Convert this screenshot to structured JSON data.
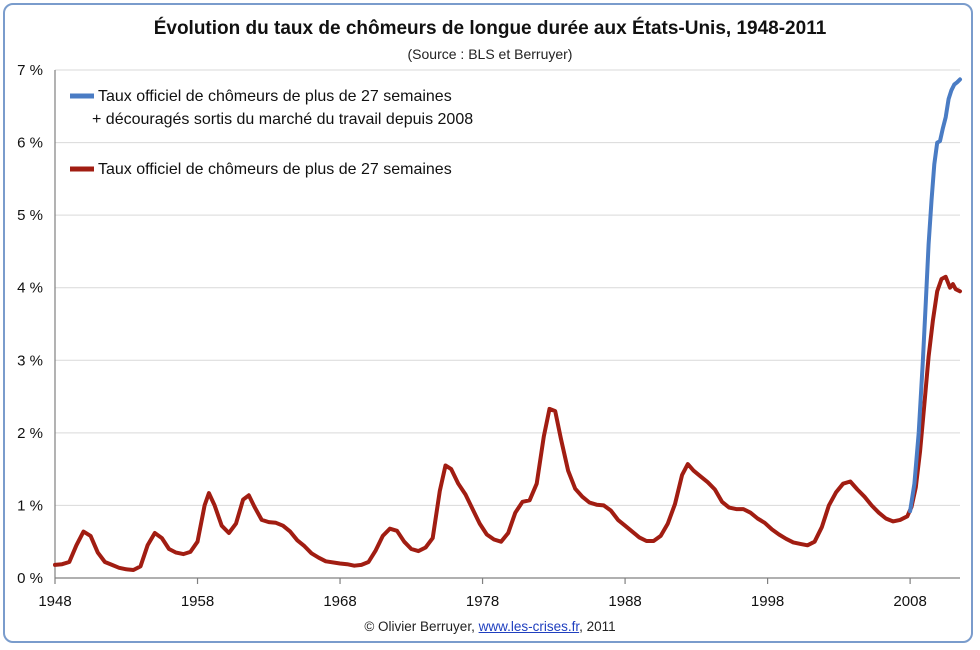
{
  "title": "Évolution du taux de chômeurs de longue durée aux États-Unis, 1948-2011",
  "subtitle": "(Source : BLS et Berruyer)",
  "footer": {
    "prefix": "© Olivier Berruyer,",
    "link_text": "www.les-crises.fr",
    "suffix": ",  2011"
  },
  "colors": {
    "blue": "#4a7cc4",
    "red": "#a11d12",
    "frame": "#7a9ccc",
    "grid": "#d9d9d9"
  },
  "chart_data": {
    "type": "line",
    "title": "Évolution du taux de chômeurs de longue durée aux États-Unis, 1948-2011",
    "subtitle": "(Source : BLS et Berruyer)",
    "xlabel": "",
    "ylabel": "",
    "xlim": [
      1948,
      2011.5
    ],
    "ylim": [
      0,
      7
    ],
    "x_ticks": [
      1948,
      1958,
      1968,
      1978,
      1988,
      1998,
      2008
    ],
    "x_tick_labels": [
      "1948",
      "1958",
      "1968",
      "1978",
      "1988",
      "1998",
      "2008"
    ],
    "y_ticks": [
      0,
      1,
      2,
      3,
      4,
      5,
      6,
      7
    ],
    "y_tick_labels": [
      "0 %",
      "1 %",
      "2 %",
      "3 %",
      "4 %",
      "5 %",
      "6 %",
      "7 %"
    ],
    "grid": "horizontal",
    "legend_position": "top-left",
    "series": [
      {
        "name": "Taux officiel de chômeurs de plus de 27 semaines",
        "name_line2": "+ découragés sortis du marché du travail depuis 2008",
        "color": "#4a7cc4",
        "points": [
          [
            2008.0,
            0.92
          ],
          [
            2008.3,
            1.3
          ],
          [
            2008.6,
            2.0
          ],
          [
            2008.9,
            3.0
          ],
          [
            2009.1,
            3.8
          ],
          [
            2009.3,
            4.6
          ],
          [
            2009.5,
            5.2
          ],
          [
            2009.7,
            5.7
          ],
          [
            2009.9,
            6.0
          ],
          [
            2010.1,
            6.02
          ],
          [
            2010.3,
            6.2
          ],
          [
            2010.5,
            6.35
          ],
          [
            2010.7,
            6.6
          ],
          [
            2010.9,
            6.72
          ],
          [
            2011.1,
            6.8
          ],
          [
            2011.3,
            6.83
          ],
          [
            2011.5,
            6.87
          ]
        ]
      },
      {
        "name": "Taux officiel de chômeurs de plus de 27 semaines",
        "color": "#a11d12",
        "points": [
          [
            1948.0,
            0.18
          ],
          [
            1948.5,
            0.19
          ],
          [
            1949.0,
            0.22
          ],
          [
            1949.5,
            0.45
          ],
          [
            1950.0,
            0.64
          ],
          [
            1950.5,
            0.58
          ],
          [
            1951.0,
            0.35
          ],
          [
            1951.5,
            0.22
          ],
          [
            1952.0,
            0.18
          ],
          [
            1952.5,
            0.14
          ],
          [
            1953.0,
            0.12
          ],
          [
            1953.5,
            0.11
          ],
          [
            1954.0,
            0.16
          ],
          [
            1954.5,
            0.45
          ],
          [
            1955.0,
            0.62
          ],
          [
            1955.5,
            0.55
          ],
          [
            1956.0,
            0.4
          ],
          [
            1956.5,
            0.35
          ],
          [
            1957.0,
            0.33
          ],
          [
            1957.5,
            0.36
          ],
          [
            1958.0,
            0.5
          ],
          [
            1958.5,
            1.0
          ],
          [
            1958.8,
            1.17
          ],
          [
            1959.2,
            1.0
          ],
          [
            1959.7,
            0.72
          ],
          [
            1960.2,
            0.62
          ],
          [
            1960.7,
            0.75
          ],
          [
            1961.2,
            1.08
          ],
          [
            1961.6,
            1.14
          ],
          [
            1962.0,
            0.98
          ],
          [
            1962.5,
            0.8
          ],
          [
            1963.0,
            0.77
          ],
          [
            1963.5,
            0.76
          ],
          [
            1964.0,
            0.72
          ],
          [
            1964.5,
            0.64
          ],
          [
            1965.0,
            0.52
          ],
          [
            1965.5,
            0.44
          ],
          [
            1966.0,
            0.34
          ],
          [
            1966.5,
            0.28
          ],
          [
            1967.0,
            0.23
          ],
          [
            1968.0,
            0.2
          ],
          [
            1968.5,
            0.19
          ],
          [
            1969.0,
            0.17
          ],
          [
            1969.5,
            0.18
          ],
          [
            1970.0,
            0.22
          ],
          [
            1970.5,
            0.38
          ],
          [
            1971.0,
            0.58
          ],
          [
            1971.5,
            0.68
          ],
          [
            1972.0,
            0.65
          ],
          [
            1972.5,
            0.5
          ],
          [
            1973.0,
            0.4
          ],
          [
            1973.5,
            0.37
          ],
          [
            1974.0,
            0.42
          ],
          [
            1974.5,
            0.55
          ],
          [
            1975.0,
            1.2
          ],
          [
            1975.4,
            1.55
          ],
          [
            1975.8,
            1.5
          ],
          [
            1976.3,
            1.3
          ],
          [
            1976.8,
            1.15
          ],
          [
            1977.3,
            0.95
          ],
          [
            1977.8,
            0.75
          ],
          [
            1978.3,
            0.6
          ],
          [
            1978.8,
            0.53
          ],
          [
            1979.3,
            0.5
          ],
          [
            1979.8,
            0.62
          ],
          [
            1980.3,
            0.9
          ],
          [
            1980.8,
            1.05
          ],
          [
            1981.3,
            1.07
          ],
          [
            1981.8,
            1.3
          ],
          [
            1982.3,
            1.95
          ],
          [
            1982.7,
            2.33
          ],
          [
            1983.1,
            2.3
          ],
          [
            1983.5,
            1.92
          ],
          [
            1984.0,
            1.48
          ],
          [
            1984.5,
            1.23
          ],
          [
            1985.0,
            1.12
          ],
          [
            1985.5,
            1.04
          ],
          [
            1986.0,
            1.01
          ],
          [
            1986.5,
            1.0
          ],
          [
            1987.0,
            0.93
          ],
          [
            1987.5,
            0.8
          ],
          [
            1988.0,
            0.72
          ],
          [
            1988.5,
            0.64
          ],
          [
            1989.0,
            0.56
          ],
          [
            1989.5,
            0.51
          ],
          [
            1990.0,
            0.51
          ],
          [
            1990.5,
            0.58
          ],
          [
            1991.0,
            0.75
          ],
          [
            1991.5,
            1.02
          ],
          [
            1992.0,
            1.42
          ],
          [
            1992.4,
            1.57
          ],
          [
            1992.8,
            1.48
          ],
          [
            1993.3,
            1.4
          ],
          [
            1993.8,
            1.32
          ],
          [
            1994.3,
            1.22
          ],
          [
            1994.8,
            1.05
          ],
          [
            1995.3,
            0.97
          ],
          [
            1995.8,
            0.95
          ],
          [
            1996.3,
            0.95
          ],
          [
            1996.8,
            0.9
          ],
          [
            1997.3,
            0.82
          ],
          [
            1997.8,
            0.76
          ],
          [
            1998.3,
            0.67
          ],
          [
            1998.8,
            0.6
          ],
          [
            1999.3,
            0.54
          ],
          [
            1999.8,
            0.49
          ],
          [
            2000.3,
            0.47
          ],
          [
            2000.8,
            0.45
          ],
          [
            2001.3,
            0.5
          ],
          [
            2001.8,
            0.7
          ],
          [
            2002.3,
            1.0
          ],
          [
            2002.8,
            1.18
          ],
          [
            2003.3,
            1.3
          ],
          [
            2003.8,
            1.33
          ],
          [
            2004.3,
            1.22
          ],
          [
            2004.8,
            1.12
          ],
          [
            2005.3,
            1.0
          ],
          [
            2005.8,
            0.9
          ],
          [
            2006.3,
            0.82
          ],
          [
            2006.8,
            0.78
          ],
          [
            2007.3,
            0.8
          ],
          [
            2007.8,
            0.85
          ],
          [
            2008.1,
            0.98
          ],
          [
            2008.4,
            1.25
          ],
          [
            2008.7,
            1.75
          ],
          [
            2009.0,
            2.4
          ],
          [
            2009.3,
            3.05
          ],
          [
            2009.6,
            3.55
          ],
          [
            2009.9,
            3.95
          ],
          [
            2010.2,
            4.12
          ],
          [
            2010.5,
            4.15
          ],
          [
            2010.8,
            4.0
          ],
          [
            2011.0,
            4.05
          ],
          [
            2011.2,
            3.98
          ],
          [
            2011.5,
            3.95
          ]
        ]
      }
    ]
  }
}
